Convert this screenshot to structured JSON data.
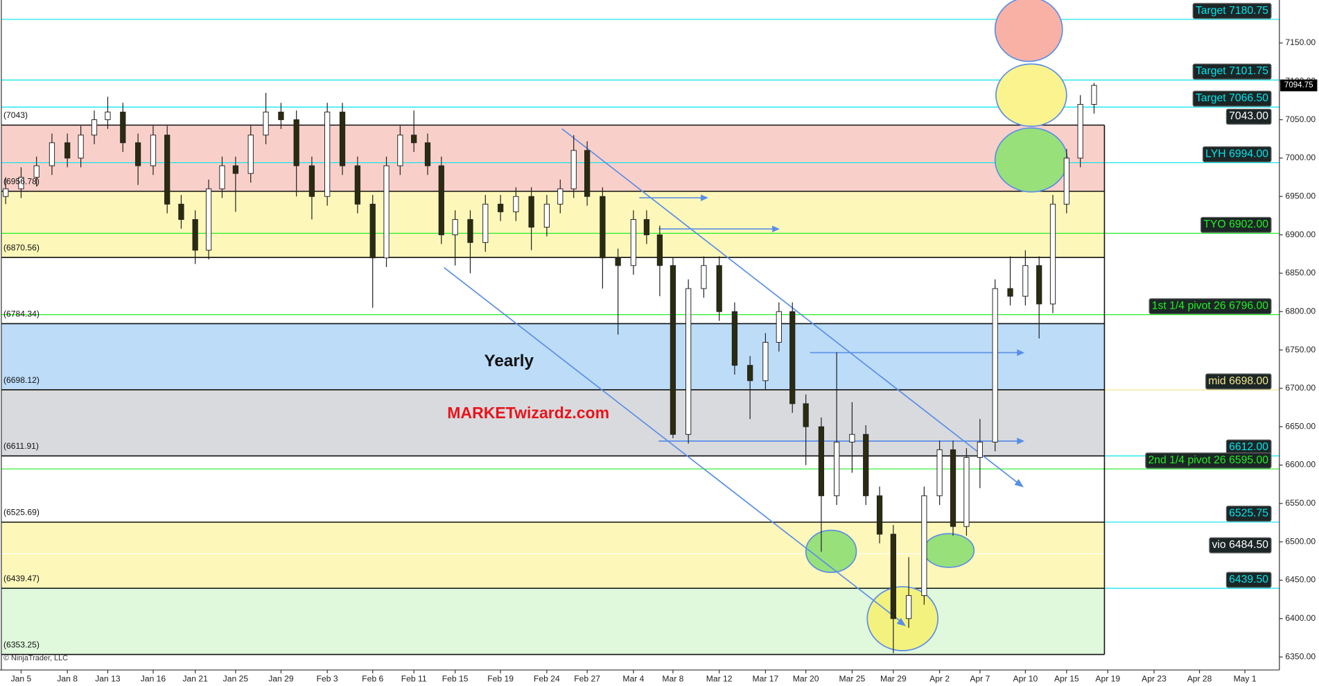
{
  "chart_data": {
    "type": "candlestick",
    "zone_label": "Yearly",
    "watermark": "MARKETwizardz.com",
    "copyright": "© NinjaTrader, LLC",
    "categories": [
      null,
      "Jan 5",
      null,
      null,
      "Jan 8",
      null,
      null,
      "Jan 13",
      null,
      null,
      "Jan 16",
      null,
      null,
      "Jan 21",
      null,
      null,
      "Jan 25",
      null,
      null,
      "Jan 29",
      null,
      null,
      "Feb 3",
      null,
      null,
      "Feb 6",
      null,
      null,
      "Feb 11",
      null,
      null,
      "Feb 15",
      null,
      null,
      "Feb 19",
      null,
      null,
      "Feb 24",
      null,
      null,
      "Feb 27",
      null,
      null,
      "Mar 4",
      null,
      null,
      "Mar 8",
      null,
      null,
      "Mar 12",
      null,
      null,
      "Mar 17",
      null,
      null,
      "Mar 20",
      null,
      null,
      "Mar 25",
      null,
      null,
      "Mar 29",
      null,
      null,
      "Apr 2",
      null,
      null,
      "Apr 7",
      null,
      null,
      "Apr 10",
      null,
      null,
      "Apr 15",
      null,
      null,
      "Apr 19",
      null,
      null,
      "Apr 23",
      null,
      null,
      "Apr 28",
      null,
      null,
      "May 1"
    ],
    "values": [
      [
        6950,
        6975,
        6940,
        6960
      ],
      [
        6960,
        6988,
        6948,
        6975
      ],
      [
        6975,
        7002,
        6963,
        6990
      ],
      [
        6990,
        7032,
        6978,
        7020
      ],
      [
        7020,
        7032,
        6988,
        7000
      ],
      [
        7000,
        7042,
        6988,
        7030
      ],
      [
        7030,
        7062,
        7018,
        7050
      ],
      [
        7050,
        7080,
        7038,
        7060
      ],
      [
        7060,
        7072,
        7008,
        7020
      ],
      [
        7020,
        7032,
        6965,
        6990
      ],
      [
        6990,
        7042,
        6978,
        7030
      ],
      [
        7030,
        7042,
        6928,
        6940
      ],
      [
        6940,
        6952,
        6908,
        6920
      ],
      [
        6920,
        6932,
        6862,
        6880
      ],
      [
        6880,
        6972,
        6868,
        6960
      ],
      [
        6960,
        7002,
        6948,
        6990
      ],
      [
        6990,
        7002,
        6930,
        6980
      ],
      [
        6980,
        7042,
        6968,
        7030
      ],
      [
        7030,
        7085,
        7018,
        7060
      ],
      [
        7060,
        7072,
        7038,
        7050
      ],
      [
        7050,
        7062,
        6950,
        6990
      ],
      [
        6990,
        7002,
        6920,
        6950
      ],
      [
        6950,
        7072,
        6938,
        7060
      ],
      [
        7060,
        7072,
        6978,
        6990
      ],
      [
        6990,
        7002,
        6928,
        6940
      ],
      [
        6940,
        6952,
        6805,
        6870
      ],
      [
        6870,
        7002,
        6858,
        6990
      ],
      [
        6990,
        7042,
        6978,
        7030
      ],
      [
        7030,
        7062,
        7008,
        7020
      ],
      [
        7020,
        7032,
        6978,
        6990
      ],
      [
        6990,
        7002,
        6888,
        6900
      ],
      [
        6900,
        6932,
        6860,
        6920
      ],
      [
        6920,
        6932,
        6850,
        6890
      ],
      [
        6890,
        6952,
        6878,
        6940
      ],
      [
        6940,
        6952,
        6918,
        6930
      ],
      [
        6930,
        6962,
        6918,
        6950
      ],
      [
        6950,
        6962,
        6880,
        6910
      ],
      [
        6910,
        6952,
        6898,
        6940
      ],
      [
        6940,
        6972,
        6928,
        6960
      ],
      [
        6960,
        7030,
        6948,
        7010
      ],
      [
        7010,
        7022,
        6938,
        6950
      ],
      [
        6950,
        6962,
        6830,
        6870
      ],
      [
        6870,
        6882,
        6770,
        6860
      ],
      [
        6860,
        6932,
        6848,
        6920
      ],
      [
        6920,
        6932,
        6888,
        6900
      ],
      [
        6900,
        6912,
        6820,
        6860
      ],
      [
        6860,
        6870,
        6635,
        6640
      ],
      [
        6640,
        6842,
        6628,
        6830
      ],
      [
        6830,
        6872,
        6818,
        6860
      ],
      [
        6860,
        6872,
        6788,
        6800
      ],
      [
        6800,
        6812,
        6718,
        6730
      ],
      [
        6730,
        6742,
        6660,
        6710
      ],
      [
        6710,
        6772,
        6698,
        6760
      ],
      [
        6760,
        6812,
        6748,
        6800
      ],
      [
        6800,
        6812,
        6668,
        6680
      ],
      [
        6680,
        6692,
        6600,
        6650
      ],
      [
        6650,
        6662,
        6487,
        6560
      ],
      [
        6560,
        6747,
        6548,
        6630
      ],
      [
        6630,
        6682,
        6590,
        6640
      ],
      [
        6640,
        6652,
        6548,
        6560
      ],
      [
        6560,
        6572,
        6498,
        6510
      ],
      [
        6510,
        6522,
        6355,
        6400
      ],
      [
        6400,
        6480,
        6388,
        6430
      ],
      [
        6430,
        6572,
        6418,
        6560
      ],
      [
        6560,
        6632,
        6548,
        6620
      ],
      [
        6620,
        6632,
        6508,
        6520
      ],
      [
        6520,
        6622,
        6508,
        6610
      ],
      [
        6610,
        6660,
        6570,
        6630
      ],
      [
        6630,
        6842,
        6618,
        6830
      ],
      [
        6830,
        6872,
        6808,
        6820
      ],
      [
        6820,
        6880,
        6808,
        6860
      ],
      [
        6860,
        6872,
        6765,
        6810
      ],
      [
        6810,
        6952,
        6798,
        6940
      ],
      [
        6940,
        7012,
        6928,
        7000
      ],
      [
        7000,
        7082,
        6988,
        7070
      ],
      [
        7070,
        7098,
        7058,
        7094.75
      ],
      null,
      null,
      null,
      null,
      null,
      null,
      null,
      null,
      null,
      null
    ],
    "up_color": "#ffffff",
    "down_color": "#2b2b10",
    "ylim": [
      6333,
      7206
    ],
    "yticks": [
      {
        "value": 6350,
        "label": "6350.00"
      },
      {
        "value": 6400,
        "label": "6400.00"
      },
      {
        "value": 6450,
        "label": "6450.00"
      },
      {
        "value": 6500,
        "label": "6500.00"
      },
      {
        "value": 6550,
        "label": "6550.00"
      },
      {
        "value": 6600,
        "label": "6600.00"
      },
      {
        "value": 6650,
        "label": "6650.00"
      },
      {
        "value": 6700,
        "label": "6700.00"
      },
      {
        "value": 6750,
        "label": "6750.00"
      },
      {
        "value": 6800,
        "label": "6800.00"
      },
      {
        "value": 6850,
        "label": "6850.00"
      },
      {
        "value": 6900,
        "label": "6900.00"
      },
      {
        "value": 6950,
        "label": "6950.00"
      },
      {
        "value": 7000,
        "label": "7000.00"
      },
      {
        "value": 7050,
        "label": "7050.00"
      },
      {
        "value": 7100,
        "label": "7100.00"
      },
      {
        "value": 7150,
        "label": "7150.00"
      }
    ],
    "zones": [
      {
        "value": 7043,
        "label": "(7043)",
        "fill": "#f9d0c9"
      },
      {
        "value": 6956.78,
        "label": "(6956.78)",
        "fill": "#fdf8b9"
      },
      {
        "value": 6870.56,
        "label": "(6870.56)",
        "fill": "#ffffff"
      },
      {
        "value": 6784.34,
        "label": "(6784.34)",
        "fill": "#bcdcf8"
      },
      {
        "value": 6698.12,
        "label": "(6698.12)",
        "fill": "#d9dadd"
      },
      {
        "value": 6611.91,
        "label": "(6611.91)",
        "fill": "#ffffff"
      },
      {
        "value": 6525.69,
        "label": "(6525.69)",
        "fill": "#fdf8b9"
      },
      {
        "value": 6439.47,
        "label": "(6439.47)",
        "fill": "#e0f8dc"
      },
      {
        "value": 6353.25,
        "label": "(6353.25)"
      }
    ],
    "levels": [
      {
        "name": "Target",
        "value": 7180.75,
        "label": "7180.75",
        "color": "#00e5ee"
      },
      {
        "name": "Target",
        "value": 7101.75,
        "label": "7101.75",
        "color": "#00e5ee"
      },
      {
        "name": "Target",
        "value": 7066.5,
        "label": "7066.50",
        "color": "#00e5ee"
      },
      {
        "value": 7043,
        "label": "7043.00",
        "color": "#ffffff"
      },
      {
        "name": "LYH",
        "value": 6994,
        "label": "6994.00",
        "color": "#00e5ee"
      },
      {
        "name": "TYO",
        "value": 6902,
        "label": "6902.00",
        "color": "#22ee22"
      },
      {
        "name": "1st 1/4 pivot 26",
        "value": 6796,
        "label": "6796.00",
        "color": "#22ee22"
      },
      {
        "name": "mid",
        "value": 6698,
        "label": "6698.00",
        "color": "#f0e68c"
      },
      {
        "value": 6612,
        "label": "6612.00",
        "color": "#00e5ee"
      },
      {
        "name": "2nd 1/4 pivot 26",
        "value": 6595,
        "label": "6595.00",
        "color": "#22ee22"
      },
      {
        "value": 6525.75,
        "label": "6525.75",
        "color": "#00e5ee"
      },
      {
        "name": "vio",
        "value": 6484.5,
        "label": "6484.50",
        "color": "#ffffff"
      },
      {
        "value": 6439.5,
        "label": "6439.50",
        "color": "#00e5ee"
      }
    ]
  }
}
